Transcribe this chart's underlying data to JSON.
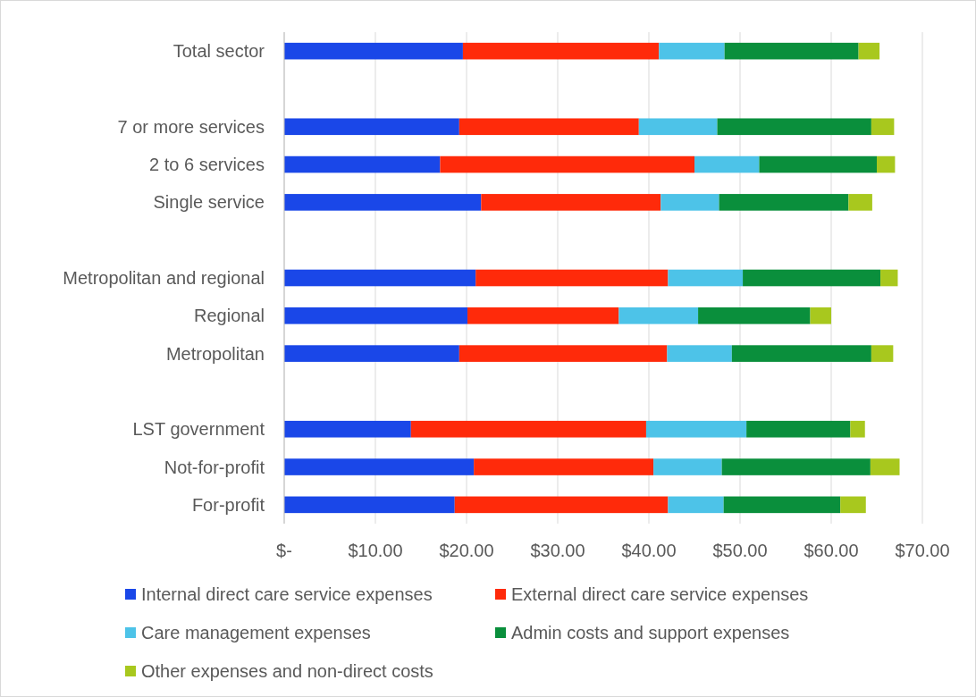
{
  "chart_data": {
    "type": "bar",
    "orientation": "horizontal",
    "stacked": true,
    "categories": [
      "Total sector",
      null,
      "7 or more services",
      "2 to 6 services",
      "Single service",
      null,
      "Metropolitan and regional",
      "Regional",
      "Metropolitan",
      null,
      "LST government",
      "Not-for-profit",
      "For-profit"
    ],
    "series": [
      {
        "name": "Internal direct care service expenses",
        "color": "#1a47e8",
        "values": [
          19.6,
          null,
          19.2,
          17.1,
          21.6,
          null,
          21.0,
          20.1,
          19.2,
          null,
          13.9,
          20.8,
          18.7
        ]
      },
      {
        "name": "External direct care service expenses",
        "color": "#ff2a0a",
        "values": [
          21.5,
          null,
          19.7,
          27.9,
          19.7,
          null,
          21.1,
          16.6,
          22.8,
          null,
          25.8,
          19.7,
          23.4
        ]
      },
      {
        "name": "Care management expenses",
        "color": "#4dc3e8",
        "values": [
          7.2,
          null,
          8.6,
          7.1,
          6.4,
          null,
          8.2,
          8.7,
          7.1,
          null,
          11.0,
          7.5,
          6.1
        ]
      },
      {
        "name": "Admin costs and support expenses",
        "color": "#0a8f3c",
        "values": [
          14.7,
          null,
          16.9,
          12.9,
          14.2,
          null,
          15.1,
          12.3,
          15.3,
          null,
          11.4,
          16.3,
          12.8
        ]
      },
      {
        "name": "Other expenses and non-direct costs",
        "color": "#a8c81e",
        "values": [
          2.3,
          null,
          2.5,
          2.0,
          2.6,
          null,
          1.9,
          2.3,
          2.4,
          null,
          1.6,
          3.2,
          2.8
        ]
      }
    ],
    "xlim": [
      0,
      70
    ],
    "xticks": [
      {
        "value": 0,
        "label": "$-"
      },
      {
        "value": 10,
        "label": "$10.00"
      },
      {
        "value": 20,
        "label": "$20.00"
      },
      {
        "value": 30,
        "label": "$30.00"
      },
      {
        "value": 40,
        "label": "$40.00"
      },
      {
        "value": 50,
        "label": "$50.00"
      },
      {
        "value": 60,
        "label": "$60.00"
      },
      {
        "value": 70,
        "label": "$70.00"
      }
    ],
    "grid": "x",
    "legend": "bottom"
  }
}
